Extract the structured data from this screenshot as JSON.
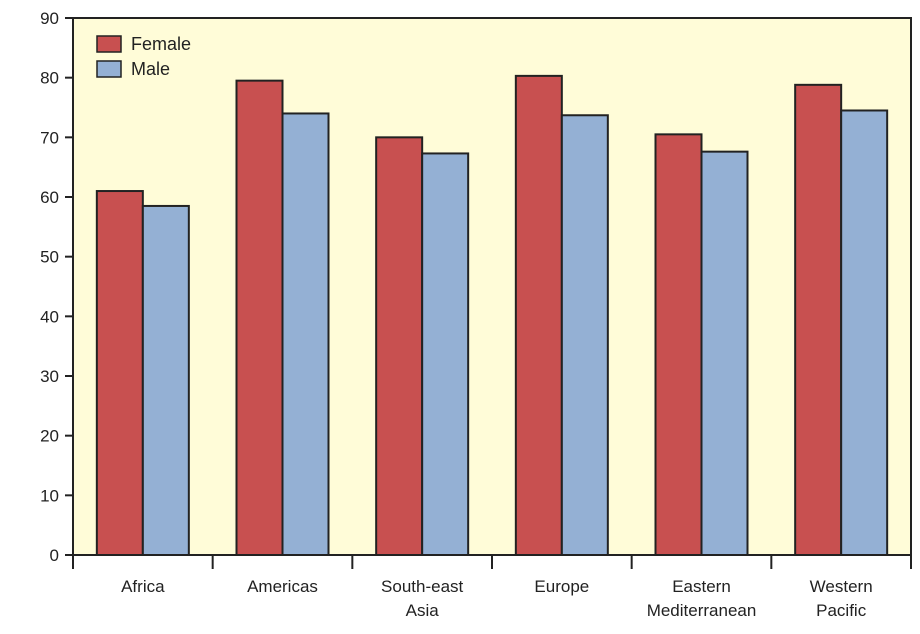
{
  "chart_data": {
    "type": "bar",
    "categories": [
      [
        "Africa"
      ],
      [
        "Americas"
      ],
      [
        "South-east",
        "Asia"
      ],
      [
        "Europe"
      ],
      [
        "Eastern",
        "Mediterranean"
      ],
      [
        "Western",
        "Pacific"
      ]
    ],
    "series": [
      {
        "name": "Female",
        "color": "#c85050",
        "values": [
          61,
          79.5,
          70,
          80.3,
          70.5,
          78.8
        ]
      },
      {
        "name": "Male",
        "color": "#94b0d4",
        "values": [
          58.5,
          74,
          67.3,
          73.7,
          67.6,
          74.5
        ]
      }
    ],
    "y_ticks": [
      "0",
      "10",
      "20",
      "30",
      "40",
      "50",
      "60",
      "70",
      "80",
      "90"
    ],
    "ylim": [
      0,
      90
    ],
    "title": "",
    "xlabel": "",
    "ylabel": "",
    "grid": false,
    "legend_position": "top-left",
    "plot_background": "#fffcd8"
  }
}
